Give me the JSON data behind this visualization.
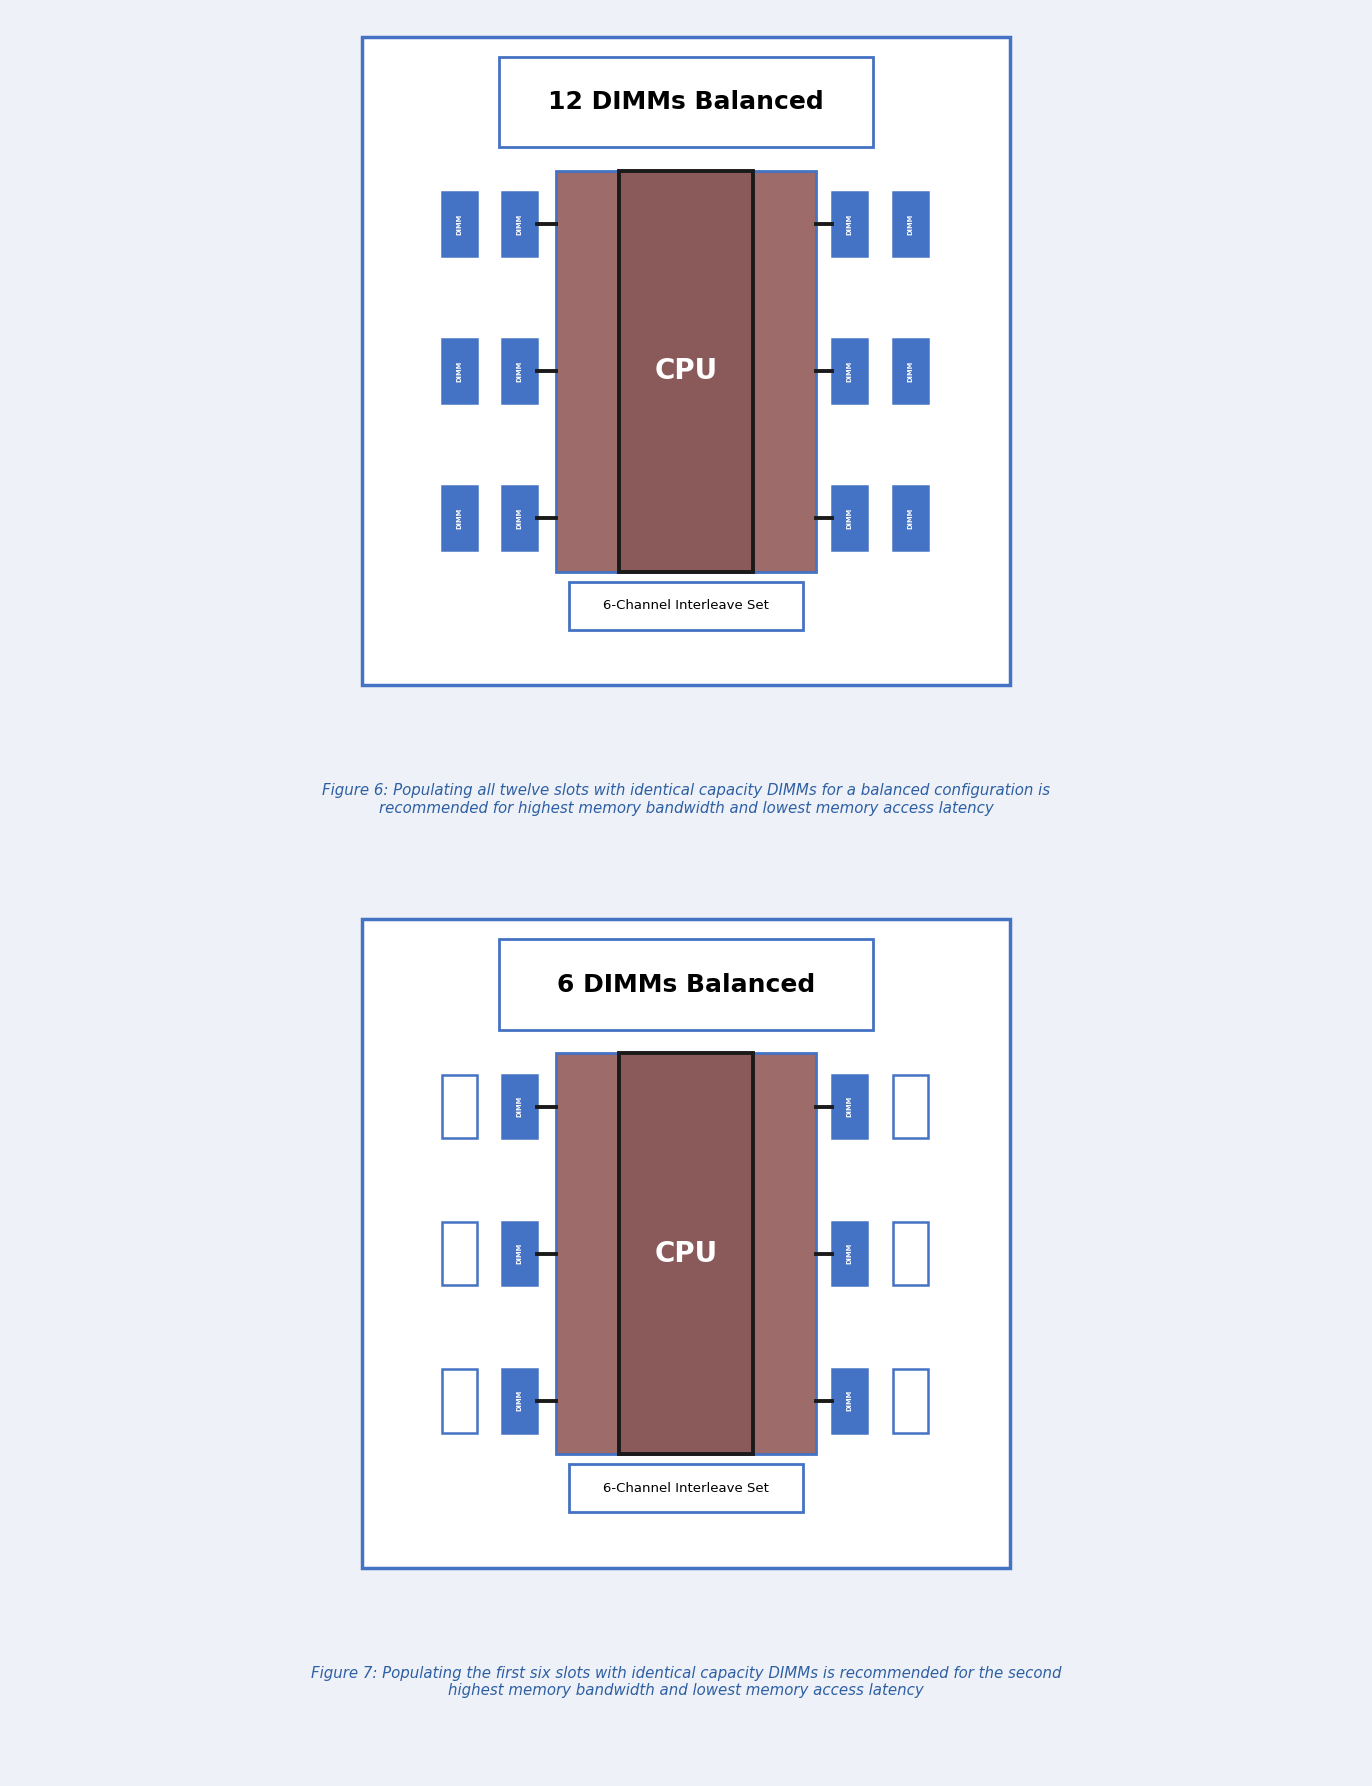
{
  "fig_width": 13.72,
  "fig_height": 17.86,
  "bg_color": "#eef2f8",
  "panel_bg": "#ffffff",
  "panel_border_color": "#4472c4",
  "cpu_fill": "#9e6b6b",
  "inner_rect_fill": "#8a5a5a",
  "inner_rect_border": "#1a1a1a",
  "dimm_fill_active": "#4472c4",
  "dimm_fill_inactive": "#ffffff",
  "dimm_border_color": "#4472c4",
  "dimm_text_color": "#ffffff",
  "title_text_color": "#000000",
  "label_text_color": "#000000",
  "cpu_text_color": "#ffffff",
  "line_color": "#1a1a1a",
  "caption_color": "#2e5fa3",
  "fig1_title": "12 DIMMs Balanced",
  "fig2_title": "6 DIMMs Balanced",
  "channel_label": "6-Channel Interleave Set",
  "cpu_label": "CPU",
  "caption1_line1": "Figure 6: Populating all twelve slots with identical capacity DIMMs for a balanced configuration is",
  "caption1_line2": "recommended for highest memory bandwidth and lowest memory access latency",
  "caption2_line1": "Figure 7: Populating the first six slots with identical capacity DIMMs is recommended for the second",
  "caption2_line2": "highest memory bandwidth and lowest memory access latency",
  "dimm_label": "DIMM",
  "dimm_config_12": [
    [
      true,
      true,
      true,
      true
    ],
    [
      true,
      true,
      true,
      true
    ],
    [
      true,
      true,
      true,
      true
    ]
  ],
  "dimm_config_6": [
    [
      true,
      false,
      true,
      false
    ],
    [
      true,
      false,
      true,
      false
    ],
    [
      true,
      false,
      true,
      false
    ]
  ]
}
